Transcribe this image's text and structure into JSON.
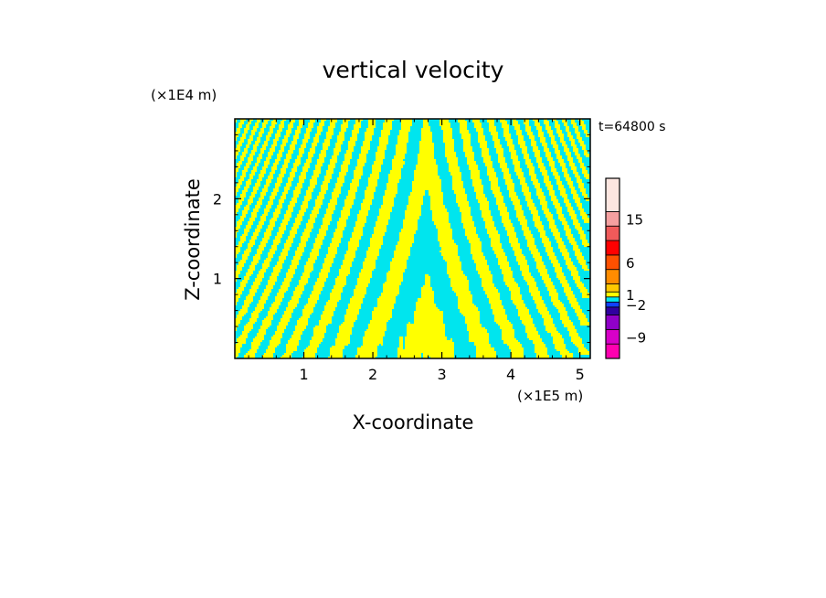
{
  "chart_data": {
    "type": "heatmap",
    "title": "vertical velocity",
    "xlabel": "X-coordinate",
    "ylabel": "Z-coordinate",
    "x_unit": "(×1E5 m)",
    "y_unit": "(×1E4 m)",
    "time_label": "t=64800 s",
    "xlim": [
      0,
      5.15
    ],
    "ylim": [
      0,
      3.0
    ],
    "x_ticks": [
      1,
      2,
      3,
      4,
      5
    ],
    "x_tick_labels": [
      "1",
      "2",
      "3",
      "4",
      "5"
    ],
    "y_ticks": [
      1,
      2
    ],
    "y_tick_labels": [
      "1",
      "2"
    ],
    "grid": false,
    "field_colors": {
      "positive": "#ffff00",
      "negative": "#00e5ee"
    },
    "colorbar": {
      "tick_labels": [
        "15",
        "6",
        "1",
        "−2",
        "−9"
      ],
      "levels": [
        {
          "color": "#ff00b0"
        },
        {
          "color": "#d800c8"
        },
        {
          "color": "#9000c8"
        },
        {
          "color": "#3000a0"
        },
        {
          "color": "#1040ff"
        },
        {
          "color": "#00e5ee"
        },
        {
          "color": "#ffff00"
        },
        {
          "color": "#ffc800"
        },
        {
          "color": "#ff8c00"
        },
        {
          "color": "#ff5000"
        },
        {
          "color": "#ff0000"
        },
        {
          "color": "#f05a5a"
        },
        {
          "color": "#f5a0a0"
        },
        {
          "color": "#fde6e0"
        }
      ]
    }
  }
}
